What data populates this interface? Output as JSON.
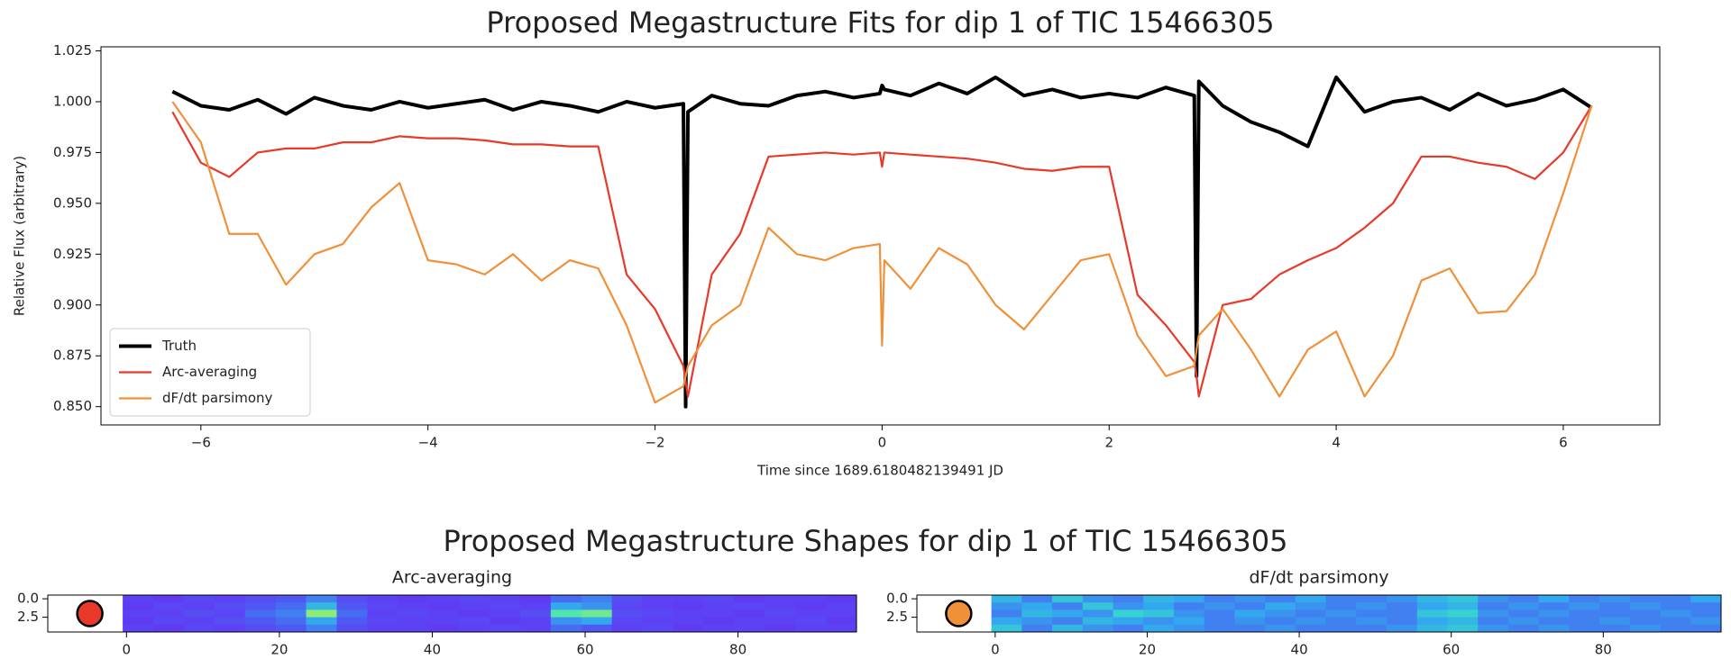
{
  "chart_data": [
    {
      "type": "line",
      "title": "Proposed Megastructure Fits for dip 1 of TIC 15466305",
      "x_label": "Time since 1689.6180482139491 JD",
      "y_label": "Relative Flux (arbitrary)",
      "x": [
        -6.25,
        -6.0,
        -5.75,
        -5.5,
        -5.25,
        -5.0,
        -4.75,
        -4.5,
        -4.25,
        -4.0,
        -3.75,
        -3.5,
        -3.25,
        -3.0,
        -2.75,
        -2.5,
        -2.25,
        -2.0,
        -1.75,
        -1.73,
        -1.71,
        -1.5,
        -1.25,
        -1.0,
        -0.75,
        -0.5,
        -0.25,
        -0.02,
        0,
        0.02,
        0.25,
        0.5,
        0.75,
        1.0,
        1.25,
        1.5,
        1.75,
        2.0,
        2.25,
        2.5,
        2.75,
        2.77,
        2.79,
        3.0,
        3.25,
        3.5,
        3.75,
        4.0,
        4.25,
        4.5,
        4.75,
        5.0,
        5.25,
        5.5,
        5.75,
        6.0,
        6.25
      ],
      "series": [
        {
          "name": "Truth",
          "color": "#000000",
          "linewidth": 4,
          "values": [
            1.005,
            0.998,
            0.996,
            1.001,
            0.994,
            1.002,
            0.998,
            0.996,
            1.0,
            0.997,
            0.999,
            1.001,
            0.996,
            1.0,
            0.998,
            0.995,
            1.0,
            0.997,
            0.999,
            0.85,
            0.995,
            1.003,
            0.999,
            0.998,
            1.003,
            1.005,
            1.002,
            1.004,
            1.008,
            1.006,
            1.003,
            1.009,
            1.004,
            1.012,
            1.003,
            1.006,
            1.002,
            1.004,
            1.002,
            1.007,
            1.003,
            0.865,
            1.01,
            0.998,
            0.99,
            0.985,
            0.978,
            1.012,
            0.995,
            1.0,
            1.002,
            0.996,
            1.004,
            0.998,
            1.001,
            1.006,
            0.997
          ]
        },
        {
          "name": "Arc-averaging",
          "color": "#e8392a",
          "linewidth": 2.2,
          "values": [
            0.995,
            0.97,
            0.963,
            0.975,
            0.977,
            0.977,
            0.98,
            0.98,
            0.983,
            0.982,
            0.982,
            0.981,
            0.979,
            0.979,
            0.978,
            0.978,
            0.915,
            0.898,
            0.87,
            0.862,
            0.855,
            0.915,
            0.935,
            0.973,
            0.974,
            0.975,
            0.974,
            0.975,
            0.968,
            0.975,
            0.974,
            0.973,
            0.972,
            0.97,
            0.967,
            0.966,
            0.968,
            0.968,
            0.905,
            0.89,
            0.872,
            0.865,
            0.855,
            0.9,
            0.903,
            0.915,
            0.922,
            0.928,
            0.938,
            0.95,
            0.973,
            0.973,
            0.97,
            0.968,
            0.962,
            0.975,
            0.998
          ]
        },
        {
          "name": "dF/dt parsimony",
          "color": "#f0913a",
          "linewidth": 2.2,
          "values": [
            1.0,
            0.98,
            0.935,
            0.935,
            0.91,
            0.925,
            0.93,
            0.948,
            0.96,
            0.922,
            0.92,
            0.915,
            0.925,
            0.912,
            0.922,
            0.918,
            0.89,
            0.852,
            0.86,
            0.865,
            0.87,
            0.89,
            0.9,
            0.938,
            0.925,
            0.922,
            0.928,
            0.93,
            0.88,
            0.922,
            0.908,
            0.928,
            0.92,
            0.9,
            0.888,
            0.905,
            0.922,
            0.925,
            0.885,
            0.865,
            0.87,
            0.878,
            0.885,
            0.898,
            0.878,
            0.855,
            0.878,
            0.887,
            0.855,
            0.875,
            0.912,
            0.918,
            0.896,
            0.897,
            0.915,
            0.955,
            0.998
          ]
        }
      ],
      "xlim": [
        -6.88,
        6.85
      ],
      "ylim": [
        0.841,
        1.027
      ],
      "xticks": [
        {
          "value": -6,
          "label": "−6"
        },
        {
          "value": -4,
          "label": "−4"
        },
        {
          "value": -2,
          "label": "−2"
        },
        0,
        2,
        4,
        6
      ],
      "yticks": [
        {
          "value": 0.85,
          "label": "0.850"
        },
        0.875,
        {
          "value": 0.9,
          "label": "0.900"
        },
        0.925,
        {
          "value": 0.95,
          "label": "0.950"
        },
        0.975,
        {
          "value": 1.0,
          "label": "1.000"
        },
        1.025
      ],
      "legend": "lower left"
    },
    {
      "type": "heatmap",
      "suptitle": "Proposed Megastructure Shapes for dip 1 of TIC 15466305",
      "title": "Arc-averaging",
      "xlim": [
        -10.3,
        95.5
      ],
      "ylim": [
        4.5,
        -0.5
      ],
      "extent": [
        -0.5,
        95.5,
        -0.5,
        4.5
      ],
      "xticks": [
        0,
        20,
        40,
        60,
        80
      ],
      "yticks": [
        {
          "value": 0,
          "label": "0.0"
        },
        {
          "value": 2.5,
          "label": "2.5"
        }
      ],
      "marker": {
        "x": -4.8,
        "y": 2,
        "color": "#e8392a"
      },
      "colormap": [
        "#6a2af6",
        "#4f58f2",
        "#33a8ee",
        "#38e0c8",
        "#a8f05a",
        "#f8b030"
      ],
      "clim": [
        0,
        1
      ],
      "values": [
        [
          0.1,
          0.08,
          0.12,
          0.1,
          0.15,
          0.2,
          0.3,
          0.15,
          0.1,
          0.08,
          0.1,
          0.12,
          0.1,
          0.08,
          0.25,
          0.3,
          0.15,
          0.1,
          0.1,
          0.12,
          0.08,
          0.1,
          0.1,
          0.08
        ],
        [
          0.08,
          0.12,
          0.1,
          0.15,
          0.2,
          0.25,
          0.45,
          0.2,
          0.12,
          0.1,
          0.08,
          0.1,
          0.12,
          0.1,
          0.4,
          0.35,
          0.12,
          0.1,
          0.08,
          0.1,
          0.12,
          0.1,
          0.08,
          0.1
        ],
        [
          0.1,
          0.1,
          0.15,
          0.12,
          0.25,
          0.3,
          0.75,
          0.25,
          0.1,
          0.12,
          0.1,
          0.08,
          0.1,
          0.15,
          0.65,
          0.7,
          0.15,
          0.12,
          0.1,
          0.1,
          0.08,
          0.12,
          0.1,
          0.1
        ],
        [
          0.08,
          0.12,
          0.1,
          0.15,
          0.2,
          0.25,
          0.4,
          0.2,
          0.12,
          0.1,
          0.1,
          0.12,
          0.08,
          0.1,
          0.35,
          0.4,
          0.12,
          0.1,
          0.1,
          0.08,
          0.1,
          0.1,
          0.12,
          0.08
        ],
        [
          0.1,
          0.08,
          0.12,
          0.1,
          0.15,
          0.2,
          0.3,
          0.15,
          0.1,
          0.1,
          0.08,
          0.1,
          0.12,
          0.1,
          0.25,
          0.2,
          0.1,
          0.12,
          0.08,
          0.1,
          0.1,
          0.08,
          0.1,
          0.1
        ]
      ]
    },
    {
      "type": "heatmap",
      "title": "dF/dt parsimony",
      "xlim": [
        -10.3,
        95.5
      ],
      "ylim": [
        4.5,
        -0.5
      ],
      "extent": [
        -0.5,
        95.5,
        -0.5,
        4.5
      ],
      "xticks": [
        0,
        20,
        40,
        60,
        80
      ],
      "yticks": [
        {
          "value": 0,
          "label": "0.0"
        },
        {
          "value": 2.5,
          "label": "2.5"
        }
      ],
      "marker": {
        "x": -4.8,
        "y": 2,
        "color": "#f0913a"
      },
      "colormap": [
        "#6a2af6",
        "#4f58f2",
        "#33a8ee",
        "#38e0c8",
        "#a8f05a",
        "#f8b030"
      ],
      "clim": [
        0,
        1
      ],
      "values": [
        [
          0.45,
          0.3,
          0.5,
          0.35,
          0.3,
          0.45,
          0.4,
          0.3,
          0.35,
          0.3,
          0.4,
          0.3,
          0.3,
          0.35,
          0.45,
          0.5,
          0.35,
          0.3,
          0.4,
          0.3,
          0.35,
          0.3,
          0.3,
          0.4
        ],
        [
          0.35,
          0.4,
          0.3,
          0.5,
          0.35,
          0.4,
          0.3,
          0.35,
          0.3,
          0.4,
          0.35,
          0.3,
          0.35,
          0.3,
          0.4,
          0.45,
          0.3,
          0.35,
          0.3,
          0.35,
          0.3,
          0.35,
          0.3,
          0.3
        ],
        [
          0.3,
          0.45,
          0.4,
          0.35,
          0.55,
          0.5,
          0.35,
          0.3,
          0.4,
          0.35,
          0.3,
          0.35,
          0.3,
          0.3,
          0.5,
          0.55,
          0.35,
          0.3,
          0.35,
          0.3,
          0.3,
          0.3,
          0.35,
          0.3
        ],
        [
          0.4,
          0.35,
          0.3,
          0.45,
          0.4,
          0.35,
          0.4,
          0.3,
          0.35,
          0.3,
          0.35,
          0.3,
          0.35,
          0.3,
          0.4,
          0.45,
          0.3,
          0.35,
          0.3,
          0.3,
          0.35,
          0.3,
          0.3,
          0.35
        ],
        [
          0.5,
          0.3,
          0.45,
          0.35,
          0.3,
          0.4,
          0.35,
          0.3,
          0.3,
          0.35,
          0.3,
          0.3,
          0.3,
          0.35,
          0.45,
          0.5,
          0.35,
          0.3,
          0.35,
          0.3,
          0.3,
          0.35,
          0.3,
          0.3
        ]
      ]
    }
  ]
}
